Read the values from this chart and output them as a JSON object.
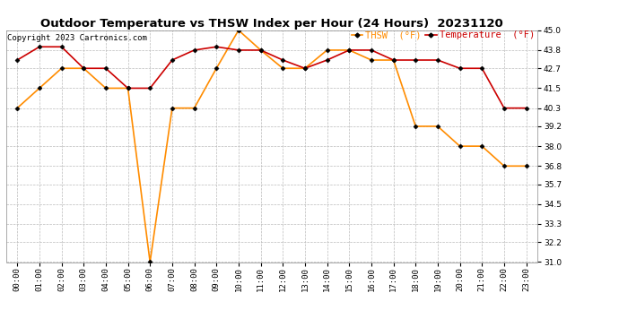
{
  "title": "Outdoor Temperature vs THSW Index per Hour (24 Hours)  20231120",
  "copyright": "Copyright 2023 Cartronics.com",
  "legend_thsw": "THSW  (°F)",
  "legend_temp": "Temperature  (°F)",
  "x_labels": [
    "00:00",
    "01:00",
    "02:00",
    "03:00",
    "04:00",
    "05:00",
    "06:00",
    "07:00",
    "08:00",
    "09:00",
    "10:00",
    "11:00",
    "12:00",
    "13:00",
    "14:00",
    "15:00",
    "16:00",
    "17:00",
    "18:00",
    "19:00",
    "20:00",
    "21:00",
    "22:00",
    "23:00"
  ],
  "temperature": [
    43.2,
    44.0,
    44.0,
    42.7,
    42.7,
    41.5,
    41.5,
    43.2,
    43.8,
    44.0,
    43.8,
    43.8,
    43.2,
    42.7,
    43.2,
    43.8,
    43.8,
    43.2,
    43.2,
    43.2,
    42.7,
    42.7,
    40.3,
    40.3
  ],
  "thsw": [
    40.3,
    41.5,
    42.7,
    42.7,
    41.5,
    41.5,
    31.0,
    40.3,
    40.3,
    42.7,
    45.0,
    43.8,
    42.7,
    42.7,
    43.8,
    43.8,
    43.2,
    43.2,
    39.2,
    39.2,
    38.0,
    38.0,
    36.8,
    36.8
  ],
  "thsw_color": "#FF8C00",
  "temp_color": "#CC0000",
  "marker_color": "#000000",
  "ylim_min": 31.0,
  "ylim_max": 45.0,
  "yticks": [
    31.0,
    32.2,
    33.3,
    34.5,
    35.7,
    36.8,
    38.0,
    39.2,
    40.3,
    41.5,
    42.7,
    43.8,
    45.0
  ],
  "grid_color": "#bbbbbb",
  "bg_color": "#ffffff",
  "title_fontsize": 9.5,
  "tick_fontsize": 6.5,
  "legend_fontsize": 7.5,
  "copyright_fontsize": 6.5,
  "linewidth": 1.2,
  "markersize": 2.5
}
